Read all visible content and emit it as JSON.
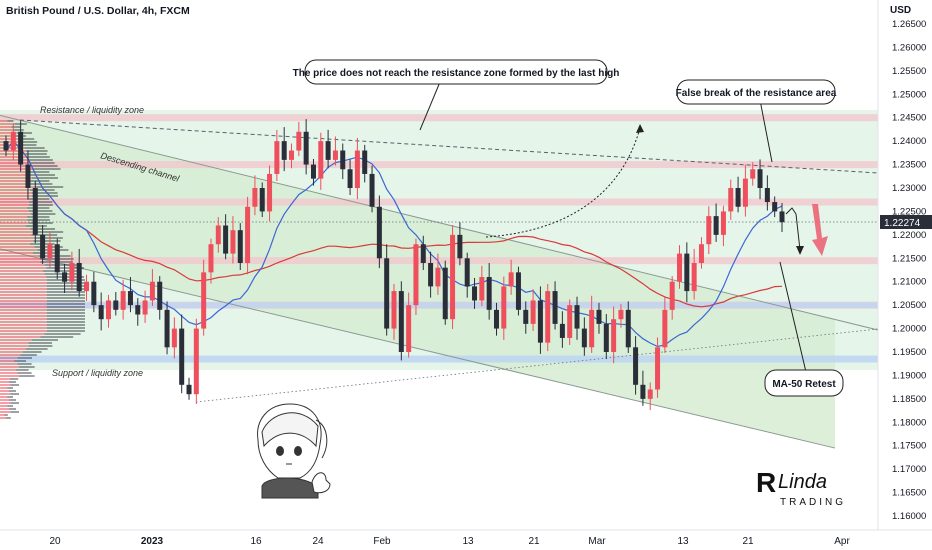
{
  "chart_data": {
    "type": "candlestick",
    "title": "British Pound / U.S. Dollar, 4h, FXCM",
    "currency_label": "USD",
    "current_price_label": "1.22274",
    "current_price": 1.22274,
    "ylim": [
      1.1575,
      1.2685
    ],
    "y_ticks": [
      "1.26500",
      "1.26000",
      "1.25500",
      "1.25000",
      "1.24500",
      "1.24000",
      "1.23500",
      "1.23000",
      "1.22500",
      "1.22000",
      "1.21500",
      "1.21000",
      "1.20500",
      "1.20000",
      "1.19500",
      "1.19000",
      "1.18500",
      "1.18000",
      "1.17500",
      "1.17000",
      "1.16500",
      "1.16000"
    ],
    "x_ticks": [
      "20",
      "2023",
      "16",
      "24",
      "Feb",
      "13",
      "21",
      "Mar",
      "13",
      "21",
      "Apr"
    ],
    "colors": {
      "up": "#ef4f5c",
      "down": "#2a2e39",
      "ma50": "#3a67d6",
      "ma200": "#d83a3a",
      "zone": "#f2c4cc",
      "support_zone": "#bcd6f2",
      "channel_fill": "#d6ecd4",
      "green_bg": "#e3f4e8",
      "arrow": "#ef5b6e",
      "axis_text": "#131722"
    },
    "zones": [
      {
        "name": "Resistance / liquidity zone",
        "price": 1.245
      },
      {
        "name": "zone-1.2350",
        "price": 1.235
      },
      {
        "name": "zone-1.2270",
        "price": 1.227
      },
      {
        "name": "zone-1.2145",
        "price": 1.2145
      },
      {
        "name": "zone-1.2050",
        "price": 1.205
      },
      {
        "name": "Support / liquidity zone",
        "price": 1.1935
      }
    ],
    "channel": {
      "upper": [
        [
          0,
          1.2455
        ],
        [
          920,
          1.1975
        ]
      ],
      "lower": [
        [
          0,
          1.217
        ],
        [
          835,
          1.1745
        ]
      ]
    },
    "closes": [
      1.238,
      1.242,
      1.235,
      1.23,
      1.22,
      1.215,
      1.218,
      1.212,
      1.21,
      1.214,
      1.208,
      1.21,
      1.205,
      1.202,
      1.206,
      1.204,
      1.208,
      1.205,
      1.203,
      1.206,
      1.21,
      1.204,
      1.196,
      1.2,
      1.188,
      1.186,
      1.2,
      1.212,
      1.218,
      1.222,
      1.216,
      1.221,
      1.214,
      1.226,
      1.23,
      1.225,
      1.233,
      1.24,
      1.236,
      1.238,
      1.242,
      1.235,
      1.232,
      1.24,
      1.236,
      1.238,
      1.234,
      1.23,
      1.238,
      1.233,
      1.226,
      1.215,
      1.2,
      1.208,
      1.195,
      1.205,
      1.218,
      1.214,
      1.209,
      1.213,
      1.202,
      1.22,
      1.215,
      1.209,
      1.206,
      1.211,
      1.204,
      1.2,
      1.209,
      1.212,
      1.204,
      1.201,
      1.206,
      1.197,
      1.208,
      1.201,
      1.198,
      1.205,
      1.2,
      1.196,
      1.204,
      1.201,
      1.195,
      1.202,
      1.204,
      1.196,
      1.188,
      1.185,
      1.187,
      1.196,
      1.204,
      1.21,
      1.216,
      1.208,
      1.214,
      1.218,
      1.224,
      1.22,
      1.225,
      1.23,
      1.226,
      1.232,
      1.234,
      1.23,
      1.227,
      1.225,
      1.2227
    ],
    "annotations": [
      {
        "name": "resistance-label",
        "text": "Resistance / liquidity zone"
      },
      {
        "name": "channel-label",
        "text": "Descending channel"
      },
      {
        "name": "support-label",
        "text": "Support / liquidity zone"
      },
      {
        "name": "callout-top",
        "text": "The price does not reach the resistance zone formed by the last high"
      },
      {
        "name": "callout-false-break",
        "text": "False break of the resistance area"
      },
      {
        "name": "callout-ma50",
        "text": "MA-50 Retest"
      }
    ],
    "watermark": {
      "line1": "Linda",
      "line2": "TRADING"
    }
  }
}
